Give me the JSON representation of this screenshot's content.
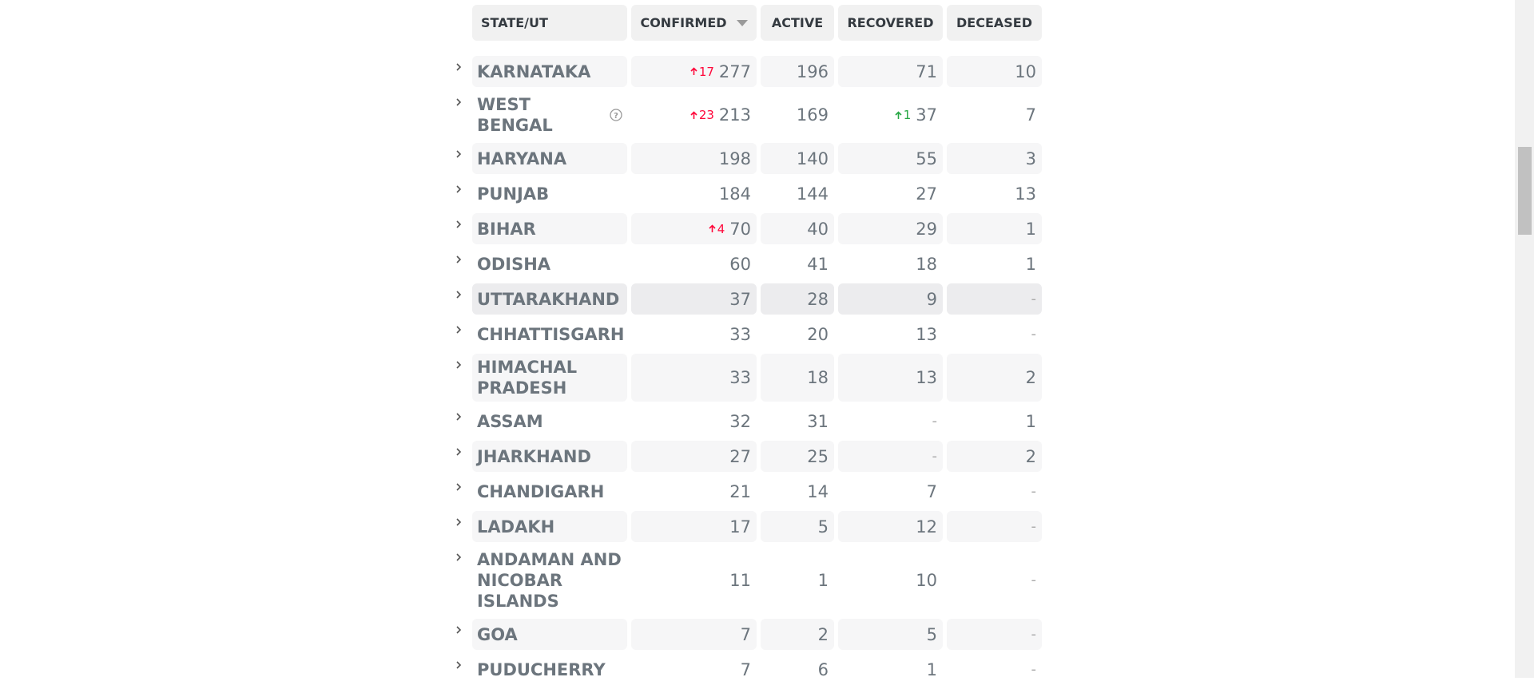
{
  "header": {
    "columns": [
      "STATE/UT",
      "CONFIRMED",
      "ACTIVE",
      "RECOVERED",
      "DECEASED"
    ]
  },
  "table": {
    "rows": [
      {
        "state": "KARNATAKA",
        "confirmed_delta": 17,
        "confirmed": 277,
        "active": 196,
        "recovered": 71,
        "deceased": 10
      },
      {
        "state": "WEST BENGAL",
        "confirmed_delta": 23,
        "confirmed": 213,
        "active": 169,
        "recovered_delta": 1,
        "recovered": 37,
        "deceased": 7
      },
      {
        "state": "HARYANA",
        "confirmed": 198,
        "active": 140,
        "recovered": 55,
        "deceased": 3
      },
      {
        "state": "PUNJAB",
        "confirmed": 184,
        "active": 144,
        "recovered": 27,
        "deceased": 13
      },
      {
        "state": "BIHAR",
        "confirmed_delta": 4,
        "confirmed": 70,
        "active": 40,
        "recovered": 29,
        "deceased": 1
      },
      {
        "state": "ODISHA",
        "confirmed": 60,
        "active": 41,
        "recovered": 18,
        "deceased": 1
      },
      {
        "state": "UTTARAKHAND",
        "confirmed": 37,
        "active": 28,
        "recovered": 9,
        "deceased": "-"
      },
      {
        "state": "CHHATTISGARH",
        "confirmed": 33,
        "active": 20,
        "recovered": 13,
        "deceased": "-"
      },
      {
        "state": "HIMACHAL PRADESH",
        "confirmed": 33,
        "active": 18,
        "recovered": 13,
        "deceased": 2
      },
      {
        "state": "ASSAM",
        "confirmed": 32,
        "active": 31,
        "recovered": "-",
        "deceased": 1
      },
      {
        "state": "JHARKHAND",
        "confirmed": 27,
        "active": 25,
        "recovered": "-",
        "deceased": 2
      },
      {
        "state": "CHANDIGARH",
        "confirmed": 21,
        "active": 14,
        "recovered": 7,
        "deceased": "-"
      },
      {
        "state": "LADAKH",
        "confirmed": 17,
        "active": 5,
        "recovered": 12,
        "deceased": "-"
      },
      {
        "state": "ANDAMAN AND NICOBAR ISLANDS",
        "confirmed": 11,
        "active": 1,
        "recovered": 10,
        "deceased": "-"
      },
      {
        "state": "GOA",
        "confirmed": 7,
        "active": 2,
        "recovered": 5,
        "deceased": "-"
      },
      {
        "state": "PUDUCHERRY",
        "confirmed": 7,
        "active": 6,
        "recovered": 1,
        "deceased": "-"
      }
    ]
  }
}
